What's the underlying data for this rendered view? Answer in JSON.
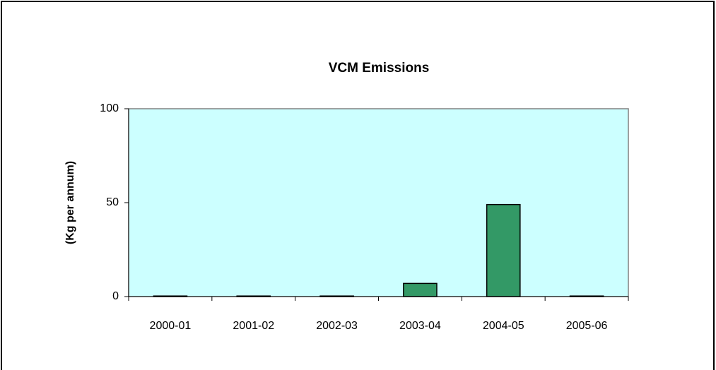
{
  "chart_data": {
    "type": "bar",
    "title": "VCM Emissions",
    "y_label": "(Kg per annum)",
    "categories": [
      "2000-01",
      "2001-02",
      "2002-03",
      "2003-04",
      "2004-05",
      "2005-06"
    ],
    "values": [
      0.3,
      0.3,
      0.3,
      7,
      49,
      0.3
    ],
    "color": "#339966",
    "plot_background": "#ccffff",
    "ylim": [
      0,
      100
    ],
    "yticks": [
      0,
      50,
      100
    ],
    "grid": false
  }
}
